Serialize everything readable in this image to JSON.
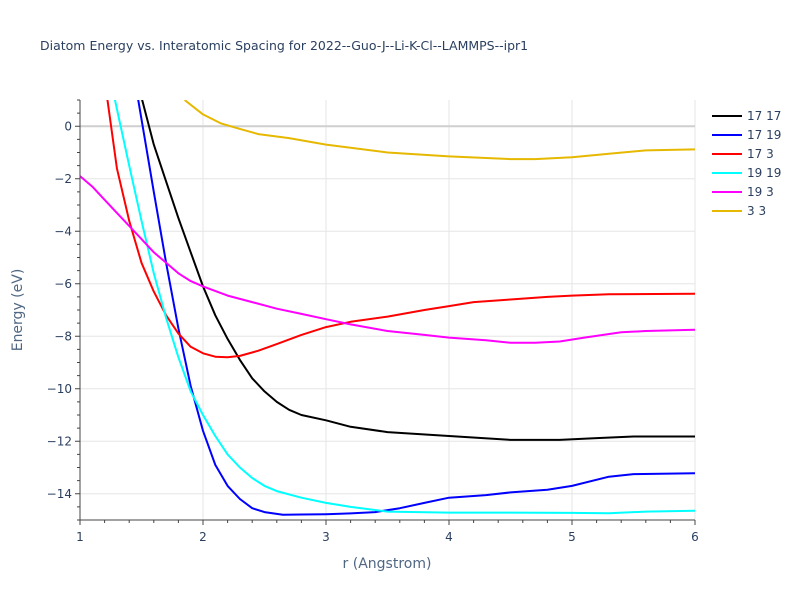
{
  "chart_data": {
    "type": "line",
    "title": "Diatom Energy vs. Interatomic Spacing for 2022--Guo-J--Li-K-Cl--LAMMPS--ipr1",
    "xlabel": "r (Angstrom)",
    "ylabel": "Energy (eV)",
    "xlim": [
      1,
      6
    ],
    "ylim": [
      -15,
      1
    ],
    "x_ticks": [
      "1",
      "2",
      "3",
      "4",
      "5",
      "6"
    ],
    "y_ticks": [
      "0",
      "−2",
      "−4",
      "−6",
      "−8",
      "−10",
      "−12",
      "−14"
    ],
    "x_tick_values": [
      1,
      2,
      3,
      4,
      5,
      6
    ],
    "y_tick_values": [
      0,
      -2,
      -4,
      -6,
      -8,
      -10,
      -12,
      -14
    ],
    "grid": true,
    "legend_position": "top-right",
    "series": [
      {
        "name": "17 17",
        "color": "#000000",
        "points": [
          [
            1.5,
            1.1
          ],
          [
            1.6,
            -0.7
          ],
          [
            1.7,
            -2.1
          ],
          [
            1.8,
            -3.5
          ],
          [
            1.9,
            -4.8
          ],
          [
            2.0,
            -6.1
          ],
          [
            2.1,
            -7.2
          ],
          [
            2.2,
            -8.1
          ],
          [
            2.3,
            -8.9
          ],
          [
            2.4,
            -9.6
          ],
          [
            2.5,
            -10.1
          ],
          [
            2.6,
            -10.5
          ],
          [
            2.7,
            -10.8
          ],
          [
            2.8,
            -11.0
          ],
          [
            3.0,
            -11.2
          ],
          [
            3.2,
            -11.45
          ],
          [
            3.5,
            -11.65
          ],
          [
            4.0,
            -11.8
          ],
          [
            4.5,
            -11.95
          ],
          [
            4.9,
            -11.95
          ],
          [
            5.2,
            -11.88
          ],
          [
            5.5,
            -11.82
          ],
          [
            6.0,
            -11.82
          ]
        ]
      },
      {
        "name": "17 19",
        "color": "#0000ff",
        "points": [
          [
            1.47,
            1.1
          ],
          [
            1.6,
            -2.5
          ],
          [
            1.7,
            -5.2
          ],
          [
            1.8,
            -7.7
          ],
          [
            1.9,
            -9.9
          ],
          [
            2.0,
            -11.6
          ],
          [
            2.1,
            -12.9
          ],
          [
            2.2,
            -13.7
          ],
          [
            2.3,
            -14.2
          ],
          [
            2.4,
            -14.55
          ],
          [
            2.5,
            -14.7
          ],
          [
            2.65,
            -14.8
          ],
          [
            2.8,
            -14.79
          ],
          [
            3.0,
            -14.78
          ],
          [
            3.2,
            -14.75
          ],
          [
            3.4,
            -14.7
          ],
          [
            3.6,
            -14.55
          ],
          [
            3.8,
            -14.35
          ],
          [
            4.0,
            -14.15
          ],
          [
            4.3,
            -14.05
          ],
          [
            4.5,
            -13.95
          ],
          [
            4.8,
            -13.85
          ],
          [
            5.0,
            -13.7
          ],
          [
            5.3,
            -13.35
          ],
          [
            5.5,
            -13.25
          ],
          [
            6.0,
            -13.22
          ]
        ]
      },
      {
        "name": "17 3",
        "color": "#ff0000",
        "points": [
          [
            1.22,
            1.1
          ],
          [
            1.3,
            -1.6
          ],
          [
            1.4,
            -3.6
          ],
          [
            1.5,
            -5.2
          ],
          [
            1.6,
            -6.3
          ],
          [
            1.7,
            -7.2
          ],
          [
            1.8,
            -7.9
          ],
          [
            1.9,
            -8.4
          ],
          [
            2.0,
            -8.65
          ],
          [
            2.1,
            -8.78
          ],
          [
            2.2,
            -8.8
          ],
          [
            2.3,
            -8.75
          ],
          [
            2.45,
            -8.55
          ],
          [
            2.6,
            -8.3
          ],
          [
            2.8,
            -7.95
          ],
          [
            3.0,
            -7.65
          ],
          [
            3.2,
            -7.45
          ],
          [
            3.5,
            -7.25
          ],
          [
            3.8,
            -7.0
          ],
          [
            4.0,
            -6.85
          ],
          [
            4.2,
            -6.7
          ],
          [
            4.5,
            -6.6
          ],
          [
            4.8,
            -6.5
          ],
          [
            5.0,
            -6.45
          ],
          [
            5.3,
            -6.4
          ],
          [
            6.0,
            -6.38
          ]
        ]
      },
      {
        "name": "19 19",
        "color": "#00ffff",
        "points": [
          [
            1.28,
            1.1
          ],
          [
            1.4,
            -1.5
          ],
          [
            1.5,
            -3.6
          ],
          [
            1.6,
            -5.6
          ],
          [
            1.7,
            -7.3
          ],
          [
            1.8,
            -8.8
          ],
          [
            1.9,
            -10.1
          ],
          [
            2.0,
            -11.0
          ],
          [
            2.1,
            -11.8
          ],
          [
            2.2,
            -12.5
          ],
          [
            2.3,
            -13.0
          ],
          [
            2.4,
            -13.4
          ],
          [
            2.5,
            -13.7
          ],
          [
            2.6,
            -13.9
          ],
          [
            2.8,
            -14.15
          ],
          [
            3.0,
            -14.35
          ],
          [
            3.2,
            -14.5
          ],
          [
            3.5,
            -14.68
          ],
          [
            4.0,
            -14.72
          ],
          [
            4.5,
            -14.72
          ],
          [
            5.0,
            -14.73
          ],
          [
            5.3,
            -14.74
          ],
          [
            5.6,
            -14.68
          ],
          [
            6.0,
            -14.65
          ]
        ]
      },
      {
        "name": "19 3",
        "color": "#ff00ff",
        "points": [
          [
            1.0,
            -1.9
          ],
          [
            1.1,
            -2.3
          ],
          [
            1.2,
            -2.8
          ],
          [
            1.3,
            -3.3
          ],
          [
            1.4,
            -3.8
          ],
          [
            1.5,
            -4.3
          ],
          [
            1.6,
            -4.8
          ],
          [
            1.7,
            -5.2
          ],
          [
            1.8,
            -5.6
          ],
          [
            1.9,
            -5.9
          ],
          [
            2.0,
            -6.1
          ],
          [
            2.2,
            -6.45
          ],
          [
            2.4,
            -6.7
          ],
          [
            2.6,
            -6.95
          ],
          [
            2.8,
            -7.15
          ],
          [
            3.0,
            -7.35
          ],
          [
            3.2,
            -7.55
          ],
          [
            3.5,
            -7.8
          ],
          [
            3.8,
            -7.95
          ],
          [
            4.0,
            -8.05
          ],
          [
            4.3,
            -8.15
          ],
          [
            4.5,
            -8.25
          ],
          [
            4.7,
            -8.25
          ],
          [
            4.9,
            -8.2
          ],
          [
            5.1,
            -8.05
          ],
          [
            5.4,
            -7.85
          ],
          [
            5.6,
            -7.8
          ],
          [
            6.0,
            -7.75
          ]
        ]
      },
      {
        "name": "3 3",
        "color": "#e6b800",
        "points": [
          [
            1.85,
            1.0
          ],
          [
            2.0,
            0.45
          ],
          [
            2.15,
            0.1
          ],
          [
            2.3,
            -0.1
          ],
          [
            2.45,
            -0.3
          ],
          [
            2.7,
            -0.45
          ],
          [
            3.0,
            -0.7
          ],
          [
            3.5,
            -1.0
          ],
          [
            4.0,
            -1.15
          ],
          [
            4.5,
            -1.25
          ],
          [
            4.7,
            -1.25
          ],
          [
            5.0,
            -1.18
          ],
          [
            5.3,
            -1.05
          ],
          [
            5.6,
            -0.92
          ],
          [
            6.0,
            -0.88
          ]
        ]
      }
    ]
  }
}
